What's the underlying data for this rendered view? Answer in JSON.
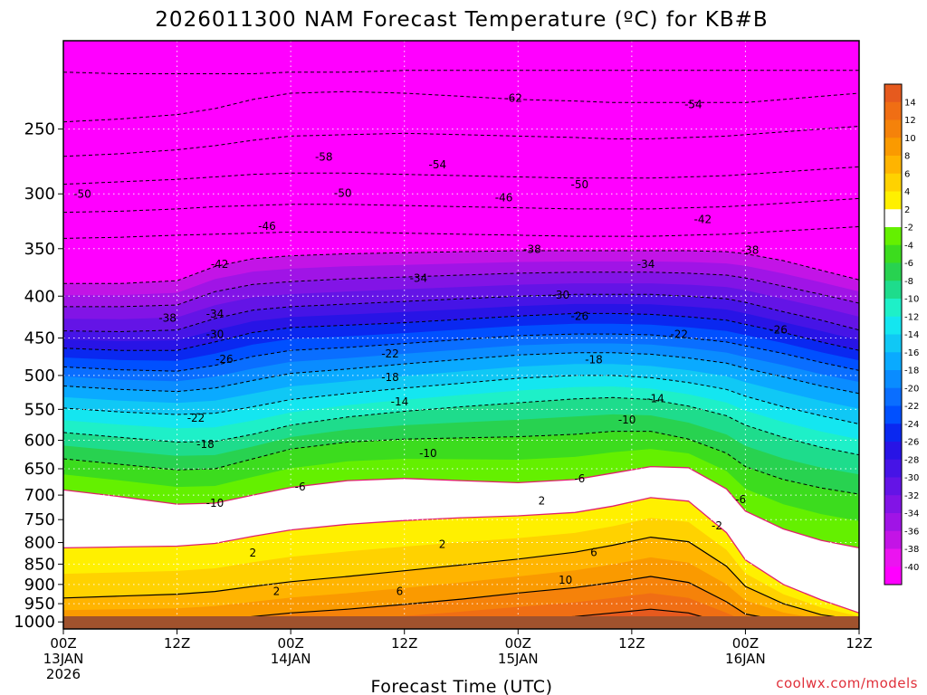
{
  "chart_data": {
    "type": "heatmap",
    "title": "2026011300 NAM Forecast Temperature (ºC) for KB#B",
    "xlabel": "Forecast Time (UTC)",
    "ylabel": "",
    "credit": "coolwx.com/models",
    "y_scale": "log",
    "y_reversed": true,
    "ylim": [
      1020,
      195
    ],
    "xlim": [
      0,
      84
    ],
    "grid": true,
    "legend_position": "right",
    "y_ticks": [
      {
        "value": 250,
        "label": "250"
      },
      {
        "value": 300,
        "label": "300"
      },
      {
        "value": 350,
        "label": "350"
      },
      {
        "value": 400,
        "label": "400"
      },
      {
        "value": 450,
        "label": "450"
      },
      {
        "value": 500,
        "label": "500"
      },
      {
        "value": 550,
        "label": "550"
      },
      {
        "value": 600,
        "label": "600"
      },
      {
        "value": 650,
        "label": "650"
      },
      {
        "value": 700,
        "label": "700"
      },
      {
        "value": 750,
        "label": "750"
      },
      {
        "value": 800,
        "label": "800"
      },
      {
        "value": 850,
        "label": "850"
      },
      {
        "value": 900,
        "label": "900"
      },
      {
        "value": 950,
        "label": "950"
      },
      {
        "value": 1000,
        "label": "1000"
      }
    ],
    "x_ticks": [
      {
        "value": 0,
        "lines": [
          "00Z",
          "13JAN",
          "2026"
        ]
      },
      {
        "value": 12,
        "lines": [
          "12Z"
        ]
      },
      {
        "value": 24,
        "lines": [
          "00Z",
          "14JAN"
        ]
      },
      {
        "value": 36,
        "lines": [
          "12Z"
        ]
      },
      {
        "value": 48,
        "lines": [
          "00Z",
          "15JAN"
        ]
      },
      {
        "value": 60,
        "lines": [
          "12Z"
        ]
      },
      {
        "value": 72,
        "lines": [
          "00Z",
          "16JAN"
        ]
      },
      {
        "value": 84,
        "lines": [
          "12Z"
        ]
      }
    ],
    "colorbar": {
      "labels": [
        "14",
        "12",
        "10",
        "8",
        "6",
        "4",
        "2",
        "-2",
        "-4",
        "-6",
        "-8",
        "-10",
        "-12",
        "-14",
        "-16",
        "-18",
        "-20",
        "-22",
        "-24",
        "-26",
        "-28",
        "-30",
        "-32",
        "-34",
        "-36",
        "-38",
        "-40"
      ],
      "colors": [
        "#e65a1e",
        "#f06e14",
        "#f5820a",
        "#fa9a00",
        "#ffb400",
        "#ffd200",
        "#fff000",
        "#ffffff",
        "#64f000",
        "#3cdc1e",
        "#28d250",
        "#1edc8c",
        "#1ef0c8",
        "#14e6f0",
        "#10c8f5",
        "#0aaaff",
        "#0a8cff",
        "#0a6eff",
        "#0050ff",
        "#0a28f0",
        "#2814e6",
        "#4614e6",
        "#6414e6",
        "#8214e6",
        "#a014e6",
        "#c314e6",
        "#eb14f0",
        "#ff00ff"
      ]
    },
    "ground_color": "#a0522d",
    "profile_x": [
      0,
      6,
      12,
      16,
      20,
      24,
      30,
      36,
      42,
      48,
      54,
      58,
      62,
      66,
      70,
      72,
      76,
      80,
      84
    ],
    "isotherms": [
      {
        "t": -62,
        "p": [
          213,
          214,
          214,
          214,
          214,
          213,
          213,
          212,
          212,
          212,
          212,
          212,
          212,
          212,
          212,
          212,
          212,
          212,
          212
        ]
      },
      {
        "t": -58,
        "p": [
          245,
          243,
          240,
          236,
          230,
          226,
          225,
          226,
          228,
          230,
          231,
          232,
          232,
          232,
          232,
          232,
          230,
          228,
          226
        ]
      },
      {
        "t": -54,
        "p": [
          270,
          268,
          265,
          262,
          258,
          255,
          254,
          253,
          254,
          255,
          256,
          257,
          257,
          256,
          255,
          254,
          252,
          250,
          248
        ]
      },
      {
        "t": -50,
        "p": [
          292,
          290,
          288,
          286,
          284,
          283,
          283,
          284,
          285,
          286,
          287,
          287,
          287,
          286,
          285,
          284,
          282,
          280,
          278
        ]
      },
      {
        "t": -46,
        "p": [
          316,
          315,
          313,
          311,
          310,
          309,
          309,
          310,
          311,
          312,
          313,
          313,
          313,
          312,
          311,
          310,
          308,
          306,
          304
        ]
      },
      {
        "t": -42,
        "p": [
          340,
          339,
          337,
          336,
          335,
          334,
          334,
          335,
          336,
          337,
          338,
          338,
          338,
          337,
          336,
          335,
          333,
          331,
          329
        ]
      },
      {
        "t": -38,
        "p": [
          386,
          386,
          383,
          368,
          360,
          357,
          355,
          354,
          353,
          352,
          352,
          352,
          352,
          352,
          353,
          355,
          362,
          372,
          382
        ]
      },
      {
        "t": -34,
        "p": [
          412,
          412,
          410,
          395,
          387,
          384,
          381,
          379,
          377,
          375,
          374,
          374,
          374,
          375,
          377,
          380,
          389,
          398,
          408
        ]
      },
      {
        "t": -30,
        "p": [
          441,
          442,
          440,
          426,
          416,
          412,
          409,
          406,
          403,
          400,
          398,
          398,
          398,
          400,
          403,
          407,
          418,
          428,
          440
        ]
      },
      {
        "t": -26,
        "p": [
          463,
          466,
          466,
          455,
          443,
          437,
          434,
          431,
          427,
          423,
          420,
          420,
          421,
          424,
          428,
          433,
          443,
          455,
          466
        ]
      },
      {
        "t": -22,
        "p": [
          488,
          492,
          494,
          486,
          474,
          466,
          462,
          457,
          452,
          447,
          445,
          445,
          446,
          450,
          455,
          460,
          470,
          482,
          493
        ]
      },
      {
        "t": -18,
        "p": [
          515,
          520,
          523,
          518,
          507,
          497,
          491,
          484,
          478,
          472,
          469,
          469,
          471,
          476,
          483,
          490,
          502,
          515,
          526
        ]
      },
      {
        "t": -14,
        "p": [
          548,
          554,
          558,
          556,
          546,
          535,
          526,
          518,
          511,
          504,
          500,
          500,
          503,
          510,
          520,
          530,
          546,
          560,
          573
        ]
      },
      {
        "t": -10,
        "p": [
          587,
          595,
          603,
          602,
          590,
          575,
          562,
          553,
          546,
          540,
          534,
          532,
          535,
          545,
          560,
          575,
          595,
          612,
          625
        ]
      },
      {
        "t": -6,
        "p": [
          632,
          642,
          652,
          650,
          632,
          615,
          603,
          598,
          596,
          594,
          590,
          585,
          585,
          598,
          622,
          646,
          670,
          686,
          698
        ]
      },
      {
        "t": -2,
        "p": [
          690,
          703,
          718,
          716,
          700,
          685,
          672,
          668,
          672,
          676,
          670,
          658,
          646,
          648,
          688,
          732,
          770,
          795,
          812
        ]
      },
      {
        "t": 2,
        "p": [
          812,
          810,
          808,
          802,
          786,
          772,
          760,
          752,
          746,
          742,
          735,
          722,
          705,
          712,
          778,
          840,
          900,
          940,
          975
        ]
      },
      {
        "t": 6,
        "p": [
          935,
          930,
          925,
          918,
          905,
          893,
          880,
          866,
          852,
          838,
          822,
          806,
          788,
          798,
          855,
          905,
          950,
          980,
          995
        ]
      },
      {
        "t": 10,
        "p": [
          1000,
          1000,
          1000,
          995,
          985,
          975,
          965,
          952,
          938,
          922,
          908,
          895,
          880,
          895,
          945,
          978,
          998,
          1005,
          1010
        ]
      },
      {
        "t": 14,
        "p": [
          1020,
          1020,
          1020,
          1020,
          1020,
          1020,
          1020,
          1015,
          1005,
          995,
          985,
          975,
          965,
          975,
          1005,
          1020,
          1020,
          1020,
          1020
        ]
      }
    ],
    "contour_labels": [
      {
        "t": -62,
        "x": 47.5,
        "p": 229,
        "text": "-62"
      },
      {
        "t": -54,
        "x": 66.5,
        "p": 233,
        "text": "-54"
      },
      {
        "t": -58,
        "x": 27.5,
        "p": 270,
        "text": "-58"
      },
      {
        "t": -54,
        "x": 39.5,
        "p": 276,
        "text": "-54"
      },
      {
        "t": -50,
        "x": 54.5,
        "p": 292,
        "text": "-50"
      },
      {
        "t": -50,
        "x": 2,
        "p": 300,
        "text": "-50"
      },
      {
        "t": -50,
        "x": 29.5,
        "p": 299,
        "text": "-50"
      },
      {
        "t": -46,
        "x": 46.5,
        "p": 303,
        "text": "-46"
      },
      {
        "t": -42,
        "x": 67.5,
        "p": 322,
        "text": "-42"
      },
      {
        "t": -46,
        "x": 21.5,
        "p": 328,
        "text": "-46"
      },
      {
        "t": -38,
        "x": 49.5,
        "p": 350,
        "text": "-38"
      },
      {
        "t": -38,
        "x": 72.5,
        "p": 351,
        "text": "-38"
      },
      {
        "t": -42,
        "x": 16.5,
        "p": 365,
        "text": "-42"
      },
      {
        "t": -34,
        "x": 61.5,
        "p": 365,
        "text": "-34"
      },
      {
        "t": -34,
        "x": 37.5,
        "p": 380,
        "text": "-34"
      },
      {
        "t": -30,
        "x": 52.5,
        "p": 398,
        "text": "-30"
      },
      {
        "t": -38,
        "x": 11,
        "p": 425,
        "text": "-38"
      },
      {
        "t": -34,
        "x": 16,
        "p": 420,
        "text": "-34"
      },
      {
        "t": -26,
        "x": 54.5,
        "p": 423,
        "text": "-26"
      },
      {
        "t": -30,
        "x": 16,
        "p": 445,
        "text": "-30"
      },
      {
        "t": -22,
        "x": 65,
        "p": 445,
        "text": "-22"
      },
      {
        "t": -26,
        "x": 75.5,
        "p": 439,
        "text": "-26"
      },
      {
        "t": -22,
        "x": 34.5,
        "p": 470,
        "text": "-22"
      },
      {
        "t": -26,
        "x": 17,
        "p": 477,
        "text": "-26"
      },
      {
        "t": -18,
        "x": 56,
        "p": 478,
        "text": "-18"
      },
      {
        "t": -18,
        "x": 34.5,
        "p": 502,
        "text": "-18"
      },
      {
        "t": -14,
        "x": 62.5,
        "p": 533,
        "text": "-14"
      },
      {
        "t": -14,
        "x": 35.5,
        "p": 538,
        "text": "-14"
      },
      {
        "t": -10,
        "x": 59.5,
        "p": 566,
        "text": "-10"
      },
      {
        "t": -22,
        "x": 14,
        "p": 563,
        "text": "-22"
      },
      {
        "t": -18,
        "x": 15,
        "p": 606,
        "text": "-18"
      },
      {
        "t": -10,
        "x": 38.5,
        "p": 622,
        "text": "-10"
      },
      {
        "t": -6,
        "x": 54.5,
        "p": 668,
        "text": "-6"
      },
      {
        "t": -6,
        "x": 25,
        "p": 683,
        "text": "-6"
      },
      {
        "t": -10,
        "x": 16,
        "p": 715,
        "text": "-10"
      },
      {
        "t": 2,
        "x": 50.5,
        "p": 711,
        "text": "2"
      },
      {
        "t": -6,
        "x": 71.5,
        "p": 708,
        "text": "-6"
      },
      {
        "t": -2,
        "x": 69,
        "p": 762,
        "text": "-2"
      },
      {
        "t": 2,
        "x": 40,
        "p": 803,
        "text": "2"
      },
      {
        "t": 2,
        "x": 20,
        "p": 823,
        "text": "2"
      },
      {
        "t": 6,
        "x": 56,
        "p": 822,
        "text": "6"
      },
      {
        "t": 2,
        "x": 22.5,
        "p": 917,
        "text": "2"
      },
      {
        "t": 6,
        "x": 35.5,
        "p": 917,
        "text": "6"
      },
      {
        "t": 10,
        "x": 53,
        "p": 888,
        "text": "10"
      }
    ]
  }
}
